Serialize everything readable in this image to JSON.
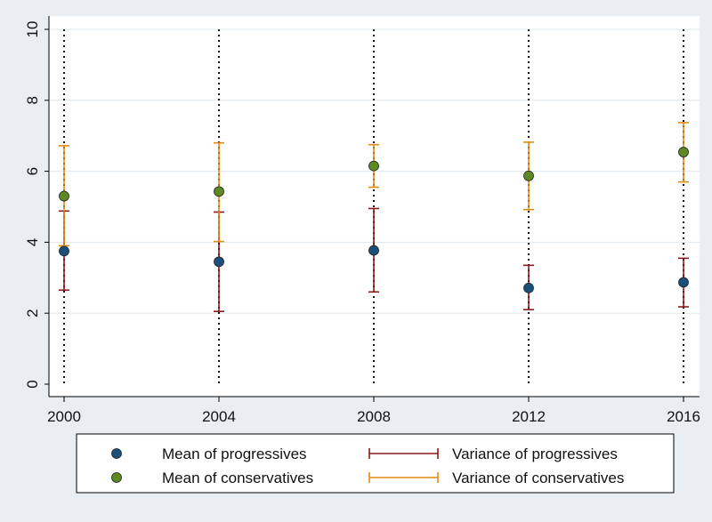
{
  "chart_data": {
    "type": "scatter",
    "title": "",
    "xlabel": "",
    "ylabel": "",
    "x": [
      2000,
      2004,
      2008,
      2012,
      2016
    ],
    "x_ticks": [
      "2000",
      "2004",
      "2008",
      "2012",
      "2016"
    ],
    "y_ticks": [
      "0",
      "2",
      "4",
      "6",
      "8",
      "10"
    ],
    "ylim": [
      0,
      10
    ],
    "grid": true,
    "legend_position": "bottom",
    "series": [
      {
        "name": "Mean of progressives",
        "kind": "point",
        "color": "#1a4f7a",
        "values": [
          3.75,
          3.45,
          3.77,
          2.71,
          2.87
        ]
      },
      {
        "name": "Mean of conservatives",
        "kind": "point",
        "color": "#5e8a22",
        "values": [
          5.3,
          5.43,
          6.15,
          5.87,
          6.54
        ]
      },
      {
        "name": "Variance of progressives",
        "kind": "range",
        "color": "#8b1a1a",
        "low": [
          2.65,
          2.05,
          2.6,
          2.1,
          2.18
        ],
        "high": [
          4.88,
          4.85,
          4.95,
          3.35,
          3.55
        ]
      },
      {
        "name": "Variance of conservatives",
        "kind": "range",
        "color": "#e38a16",
        "low": [
          3.9,
          4.02,
          5.55,
          4.92,
          5.7
        ],
        "high": [
          6.72,
          6.8,
          6.75,
          6.82,
          7.37
        ]
      }
    ]
  }
}
